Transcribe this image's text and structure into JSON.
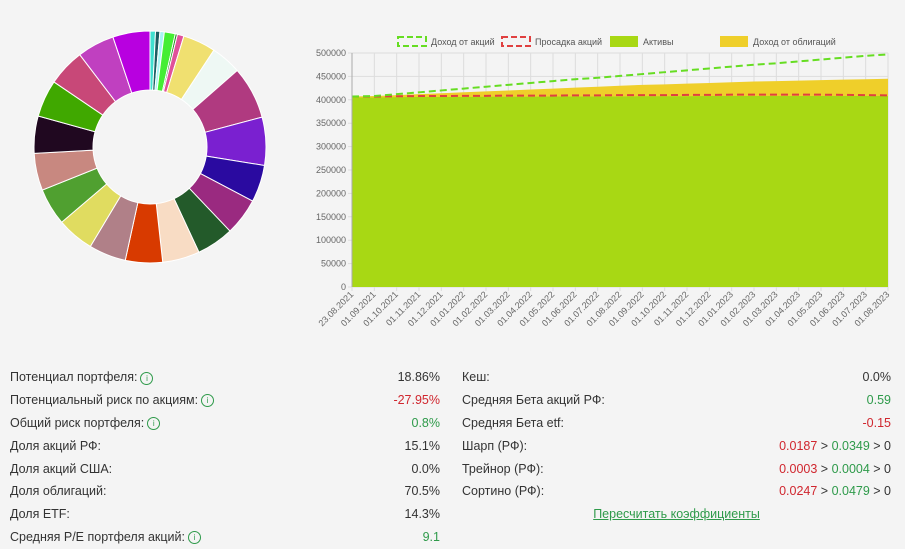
{
  "donut": {
    "slices": [
      {
        "weight": 2.5,
        "color": "#40e0d0"
      },
      {
        "weight": 2,
        "color": "#1b5e63"
      },
      {
        "weight": 2,
        "color": "#a8f4f4"
      },
      {
        "weight": 5,
        "color": "#44ee33"
      },
      {
        "weight": 1,
        "color": "#228b22"
      },
      {
        "weight": 3,
        "color": "#e0509a"
      },
      {
        "weight": 15,
        "color": "#f0e070"
      },
      {
        "weight": 14,
        "color": "#eef8f4"
      },
      {
        "weight": 24,
        "color": "#b03a80"
      },
      {
        "weight": 22,
        "color": "#7a20d0"
      },
      {
        "weight": 17,
        "color": "#2a0aa0"
      },
      {
        "weight": 17,
        "color": "#9a2a80"
      },
      {
        "weight": 17,
        "color": "#235a2a"
      },
      {
        "weight": 17,
        "color": "#f8dcc4"
      },
      {
        "weight": 17,
        "color": "#d83a00"
      },
      {
        "weight": 17,
        "color": "#b08088"
      },
      {
        "weight": 17,
        "color": "#e0dc60"
      },
      {
        "weight": 17,
        "color": "#50a030"
      },
      {
        "weight": 17,
        "color": "#c88880"
      },
      {
        "weight": 17,
        "color": "#200820"
      },
      {
        "weight": 17,
        "color": "#40a800"
      },
      {
        "weight": 17,
        "color": "#c84878"
      },
      {
        "weight": 17,
        "color": "#c040c0"
      },
      {
        "weight": 17,
        "color": "#b800e0"
      }
    ]
  },
  "chart_data": {
    "type": "line",
    "title": "",
    "xlabel": "",
    "ylabel": "",
    "ylim": [
      0,
      500000
    ],
    "yticks": [
      "0",
      "50000",
      "100000",
      "150000",
      "200000",
      "250000",
      "300000",
      "350000",
      "400000",
      "450000",
      "500000"
    ],
    "x": [
      "23.08.2021",
      "01.09.2021",
      "01.10.2021",
      "01.11.2021",
      "01.12.2021",
      "01.01.2022",
      "01.02.2022",
      "01.03.2022",
      "01.04.2022",
      "01.05.2022",
      "01.06.2022",
      "01.07.2022",
      "01.08.2022",
      "01.09.2022",
      "01.10.2022",
      "01.11.2022",
      "01.12.2022",
      "01.01.2023",
      "01.02.2023",
      "01.03.2023",
      "01.04.2023",
      "01.05.2023",
      "01.06.2023",
      "01.07.2023",
      "01.08.2023"
    ],
    "legend_position": "top",
    "grid": true,
    "series": [
      {
        "name": "Доход от акций",
        "style": "dashed",
        "color": "#66dd22",
        "values": [
          407000,
          408000,
          412000,
          416000,
          420000,
          424000,
          428000,
          432000,
          436000,
          440000,
          444000,
          447000,
          451000,
          455000,
          459000,
          463000,
          467000,
          471000,
          475000,
          478000,
          482000,
          486000,
          490000,
          494000,
          497000
        ]
      },
      {
        "name": "Просадка акций",
        "style": "dashed",
        "color": "#e04040",
        "values": [
          407000,
          407000,
          407500,
          408000,
          408000,
          408500,
          408500,
          409000,
          409000,
          409000,
          409500,
          409500,
          410000,
          410000,
          410000,
          410500,
          410500,
          411000,
          411000,
          411000,
          411000,
          411000,
          410500,
          410000,
          409500
        ]
      },
      {
        "name": "Активы",
        "style": "area",
        "color": "#a8d814",
        "values": [
          405000,
          405000,
          405500,
          406000,
          406000,
          406000,
          406500,
          406500,
          406500,
          407000,
          407000,
          407000,
          407000,
          407500,
          407500,
          407500,
          408000,
          408000,
          408000,
          408000,
          408000,
          408000,
          408000,
          408000,
          408000
        ]
      },
      {
        "name": "Доход от облигаций",
        "style": "area",
        "color": "#efcf2a",
        "values": [
          407000,
          408000,
          410000,
          412000,
          414000,
          416000,
          418000,
          420000,
          422000,
          424000,
          426000,
          428000,
          430000,
          432000,
          433000,
          434500,
          436000,
          437500,
          439000,
          440000,
          441000,
          442000,
          443000,
          444000,
          445000
        ]
      }
    ]
  },
  "stats_left": [
    {
      "label": "Потенциал портфеля:",
      "value": "18.86%",
      "info": true,
      "cls": "dark"
    },
    {
      "label": "Потенциальный риск по акциям:",
      "value": "-27.95%",
      "info": true,
      "cls": "red"
    },
    {
      "label": "Общий риск портфеля:",
      "value": "0.8%",
      "info": true,
      "cls": "green"
    },
    {
      "label": "Доля акций РФ:",
      "value": "15.1%",
      "info": false,
      "cls": "dark"
    },
    {
      "label": "Доля акций США:",
      "value": "0.0%",
      "info": false,
      "cls": "dark"
    },
    {
      "label": "Доля облигаций:",
      "value": "70.5%",
      "info": false,
      "cls": "dark"
    },
    {
      "label": "Доля ETF:",
      "value": "14.3%",
      "info": false,
      "cls": "dark"
    },
    {
      "label": "Средняя P/E портфеля акций:",
      "value": "9.1",
      "info": true,
      "cls": "green"
    }
  ],
  "stats_right": [
    {
      "label": "Кеш:",
      "value": "0.0%",
      "cls": "dark"
    },
    {
      "label": "Средняя Бета акций РФ:",
      "value": "0.59",
      "cls": "green"
    },
    {
      "label": "Средняя Бета etf:",
      "value": "-0.15",
      "cls": "red"
    }
  ],
  "ratios": [
    {
      "label": "Шарп (РФ):",
      "a": "0.0187",
      "b": "0.0349",
      "c": "0"
    },
    {
      "label": "Трейнор (РФ):",
      "a": "0.0003",
      "b": "0.0004",
      "c": "0"
    },
    {
      "label": "Сортино (РФ):",
      "a": "0.0247",
      "b": "0.0479",
      "c": "0"
    }
  ],
  "info_glyph": "i",
  "gt": " > ",
  "recalc_link": "Пересчитать коэффициенты"
}
